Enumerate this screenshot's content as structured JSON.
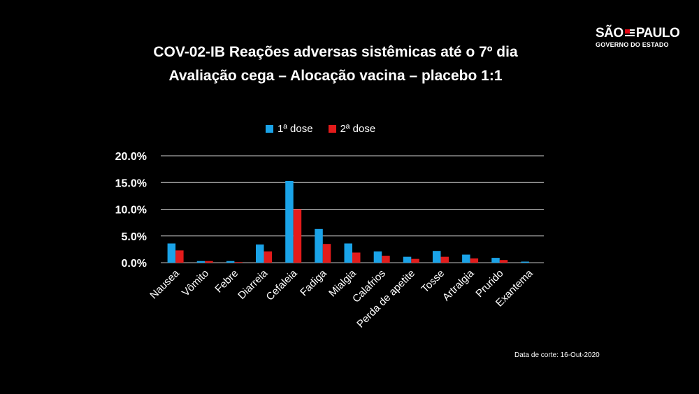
{
  "logo": {
    "name": "SÃO PAULO",
    "subtitle": "GOVERNO DO ESTADO"
  },
  "footer": {
    "cutoff": "Data de corte: 16-Out-2020"
  },
  "chart_data": {
    "type": "bar",
    "title_line1": "COV-02-IB Reações adversas sistêmicas até o 7º dia",
    "title_line2": "Avaliação cega – Alocação vacina – placebo 1:1",
    "categories": [
      "Nausea",
      "Vômito",
      "Febre",
      "Diarreia",
      "Cefaleia",
      "Fadiga",
      "Mialgia",
      "Calafrios",
      "Perda de apetite",
      "Tosse",
      "Artralgia",
      "Prurido",
      "Exantema"
    ],
    "series": [
      {
        "name": "1ª dose",
        "color": "#1aa3e8",
        "values": [
          3.6,
          0.3,
          0.3,
          3.4,
          15.3,
          6.3,
          3.6,
          2.1,
          1.1,
          2.2,
          1.5,
          0.9,
          0.2
        ]
      },
      {
        "name": "2ª dose",
        "color": "#e31b1b",
        "values": [
          2.3,
          0.3,
          0.1,
          2.1,
          10.0,
          3.5,
          1.9,
          1.3,
          0.7,
          1.1,
          0.8,
          0.5,
          0.0
        ]
      }
    ],
    "ylim": [
      0,
      20
    ],
    "yticks": [
      "0.0%",
      "5.0%",
      "10.0%",
      "15.0%",
      "20.0%"
    ],
    "ytick_values": [
      0,
      5,
      10,
      15,
      20
    ],
    "grid": true,
    "legend": "top"
  }
}
